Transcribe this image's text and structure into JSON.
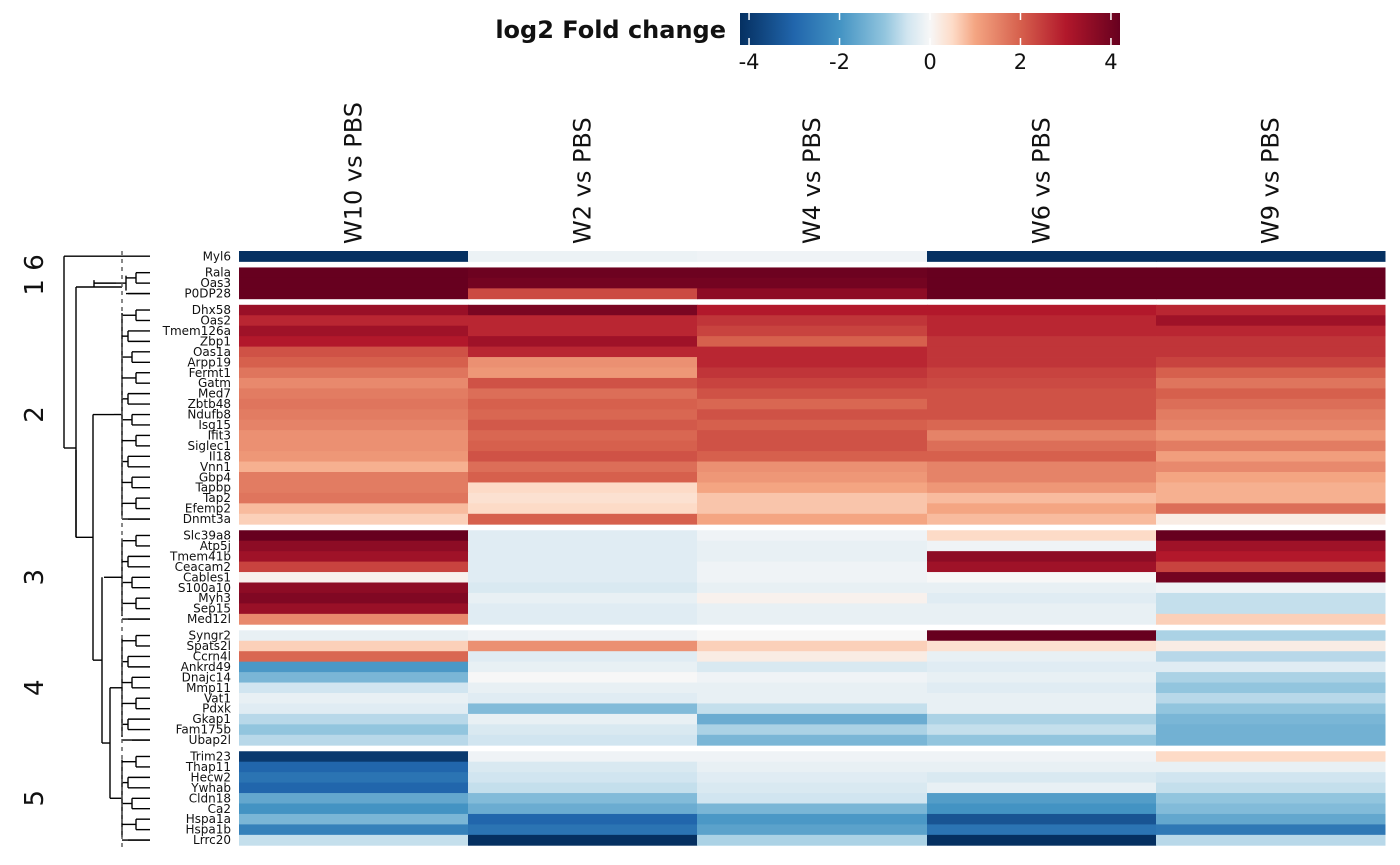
{
  "chart_data": {
    "type": "heatmap",
    "legend": {
      "title": "log2 Fold change",
      "ticks": [
        "-4",
        "-2",
        "0",
        "2",
        "4"
      ],
      "tick_values": [
        -4,
        -2,
        0,
        2,
        4
      ],
      "range": [
        -4.2,
        4.2
      ],
      "placement": "top"
    },
    "colors": {
      "neg4": "#053061",
      "neg3": "#2166ac",
      "neg2": "#4393c3",
      "neg1": "#92c5de",
      "neg05": "#d1e5f0",
      "zero": "#f7f7f7",
      "pos05": "#fddbc7",
      "pos1": "#f4a582",
      "pos2": "#d6604d",
      "pos3": "#b2182b",
      "pos4": "#67001f"
    },
    "columns": [
      "W10 vs PBS",
      "W2 vs PBS",
      "W4 vs PBS",
      "W6 vs PBS",
      "W9 vs PBS"
    ],
    "clusters": [
      {
        "label": "1",
        "rows": [
          {
            "gene": "Myl6",
            "values": [
              -4.2,
              -0.15,
              -0.1,
              -4.2,
              -4.2
            ]
          }
        ]
      },
      {
        "label": "6",
        "rows": [
          {
            "gene": "Rala",
            "values": [
              4.2,
              4.1,
              4.1,
              4.2,
              4.2
            ]
          },
          {
            "gene": "Oas3",
            "values": [
              4.2,
              4.0,
              4.0,
              4.2,
              4.2
            ]
          },
          {
            "gene": "P0DP28",
            "values": [
              4.2,
              2.3,
              3.6,
              4.2,
              4.2
            ]
          }
        ]
      },
      {
        "label": "2",
        "rows": [
          {
            "gene": "Dhx58",
            "values": [
              3.4,
              3.9,
              3.0,
              3.0,
              2.8
            ]
          },
          {
            "gene": "Oas2",
            "values": [
              2.8,
              2.8,
              2.6,
              2.8,
              3.3
            ]
          },
          {
            "gene": "Tmem126a",
            "values": [
              3.3,
              2.8,
              2.4,
              2.8,
              2.8
            ]
          },
          {
            "gene": "Zbp1",
            "values": [
              3.0,
              3.3,
              2.0,
              2.6,
              2.6
            ]
          },
          {
            "gene": "Oas1a",
            "values": [
              2.2,
              2.8,
              2.8,
              2.6,
              2.6
            ]
          },
          {
            "gene": "Arpp19",
            "values": [
              2.0,
              1.3,
              2.8,
              2.6,
              2.4
            ]
          },
          {
            "gene": "Fermt1",
            "values": [
              1.7,
              1.2,
              2.6,
              2.4,
              2.0
            ]
          },
          {
            "gene": "Gatm",
            "values": [
              1.4,
              2.2,
              2.4,
              2.3,
              1.7
            ]
          },
          {
            "gene": "Med7",
            "values": [
              1.6,
              1.8,
              2.2,
              2.2,
              2.0
            ]
          },
          {
            "gene": "Zbtb48",
            "values": [
              1.7,
              2.0,
              1.9,
              2.2,
              1.8
            ]
          },
          {
            "gene": "Ndufb8",
            "values": [
              1.6,
              1.9,
              2.2,
              2.2,
              1.6
            ]
          },
          {
            "gene": "Isg15",
            "values": [
              1.5,
              2.1,
              2.0,
              1.9,
              1.5
            ]
          },
          {
            "gene": "Ifit3",
            "values": [
              1.3,
              1.9,
              2.2,
              1.5,
              1.2
            ]
          },
          {
            "gene": "Siglec1",
            "values": [
              1.3,
              2.0,
              2.2,
              1.8,
              1.6
            ]
          },
          {
            "gene": "Il18",
            "values": [
              1.2,
              2.2,
              2.0,
              2.0,
              1.1
            ]
          },
          {
            "gene": "Vnn1",
            "values": [
              0.9,
              1.8,
              1.3,
              1.5,
              1.4
            ]
          },
          {
            "gene": "Gbp4",
            "values": [
              1.6,
              2.0,
              1.2,
              1.5,
              1.0
            ]
          },
          {
            "gene": "Tapbp",
            "values": [
              1.6,
              0.5,
              1.0,
              1.2,
              0.9
            ]
          },
          {
            "gene": "Tap2",
            "values": [
              1.7,
              0.4,
              0.7,
              0.8,
              0.9
            ]
          },
          {
            "gene": "Efemp2",
            "values": [
              0.8,
              0.5,
              0.7,
              1.0,
              1.8
            ]
          },
          {
            "gene": "Dnmt3a",
            "values": [
              0.6,
              2.0,
              1.0,
              0.8,
              0.2
            ]
          }
        ]
      },
      {
        "label": "3",
        "rows": [
          {
            "gene": "Slc39a8",
            "values": [
              4.2,
              -0.3,
              -0.1,
              0.5,
              4.2
            ]
          },
          {
            "gene": "Atp5j",
            "values": [
              3.6,
              -0.3,
              -0.2,
              -0.1,
              3.3
            ]
          },
          {
            "gene": "Tmem41b",
            "values": [
              3.3,
              -0.3,
              -0.2,
              3.6,
              3.0
            ]
          },
          {
            "gene": "Ceacam2",
            "values": [
              2.4,
              -0.3,
              -0.1,
              3.3,
              2.4
            ]
          },
          {
            "gene": "Cables1",
            "values": [
              0.1,
              -0.3,
              -0.1,
              0.0,
              4.0
            ]
          },
          {
            "gene": "S100a10",
            "values": [
              3.6,
              -0.4,
              -0.2,
              -0.2,
              -0.1
            ]
          },
          {
            "gene": "Myh3",
            "values": [
              3.8,
              -0.2,
              0.1,
              -0.3,
              -0.6
            ]
          },
          {
            "gene": "Sep15",
            "values": [
              3.4,
              -0.3,
              -0.2,
              -0.2,
              -0.6
            ]
          },
          {
            "gene": "Med12l",
            "values": [
              1.4,
              -0.3,
              -0.2,
              -0.2,
              0.6
            ]
          }
        ]
      },
      {
        "label": "4",
        "rows": [
          {
            "gene": "Syngr2",
            "values": [
              -0.2,
              -0.1,
              0.0,
              4.2,
              -0.8
            ]
          },
          {
            "gene": "Spats2l",
            "values": [
              0.6,
              1.3,
              0.6,
              0.4,
              0.2
            ]
          },
          {
            "gene": "Ccrn4l",
            "values": [
              1.9,
              -0.3,
              0.2,
              -0.2,
              -0.7
            ]
          },
          {
            "gene": "Ankrd49",
            "values": [
              -1.9,
              -0.2,
              -0.4,
              -0.3,
              -0.3
            ]
          },
          {
            "gene": "Dnajc14",
            "values": [
              -1.3,
              0.0,
              -0.1,
              -0.2,
              -0.8
            ]
          },
          {
            "gene": "Mmp11",
            "values": [
              -0.5,
              -0.2,
              -0.2,
              -0.3,
              -1.0
            ]
          },
          {
            "gene": "Vat1",
            "values": [
              -0.2,
              -0.3,
              -0.2,
              -0.2,
              -0.7
            ]
          },
          {
            "gene": "Pdxk",
            "values": [
              -0.3,
              -1.2,
              -0.6,
              -0.2,
              -1.0
            ]
          },
          {
            "gene": "Gkap1",
            "values": [
              -0.7,
              -0.2,
              -1.5,
              -0.8,
              -1.3
            ]
          },
          {
            "gene": "Fam175b",
            "values": [
              -1.0,
              -0.4,
              -0.8,
              -0.6,
              -1.4
            ]
          },
          {
            "gene": "Ubap2l",
            "values": [
              -0.7,
              -0.5,
              -1.3,
              -1.0,
              -1.4
            ]
          }
        ]
      },
      {
        "label": "5",
        "rows": [
          {
            "gene": "Trim23",
            "values": [
              -4.0,
              -0.1,
              -0.1,
              -0.1,
              0.5
            ]
          },
          {
            "gene": "Thap11",
            "values": [
              -3.0,
              -0.4,
              -0.2,
              -0.2,
              -0.2
            ]
          },
          {
            "gene": "Hecw2",
            "values": [
              -2.7,
              -0.5,
              -0.3,
              -0.4,
              -0.5
            ]
          },
          {
            "gene": "Ywhab",
            "values": [
              -3.0,
              -0.6,
              -0.4,
              -0.2,
              -0.6
            ]
          },
          {
            "gene": "Cldn18",
            "values": [
              -1.6,
              -1.2,
              -0.5,
              -1.8,
              -1.0
            ]
          },
          {
            "gene": "Ca2",
            "values": [
              -2.0,
              -1.5,
              -1.3,
              -2.0,
              -1.2
            ]
          },
          {
            "gene": "Hspa1a",
            "values": [
              -1.3,
              -3.0,
              -1.9,
              -3.4,
              -1.6
            ]
          },
          {
            "gene": "Hspa1b",
            "values": [
              -2.4,
              -2.7,
              -1.7,
              -2.7,
              -2.6
            ]
          },
          {
            "gene": "Lrrc20",
            "values": [
              -0.6,
              -4.2,
              -0.8,
              -4.2,
              -0.7
            ]
          }
        ]
      }
    ]
  }
}
